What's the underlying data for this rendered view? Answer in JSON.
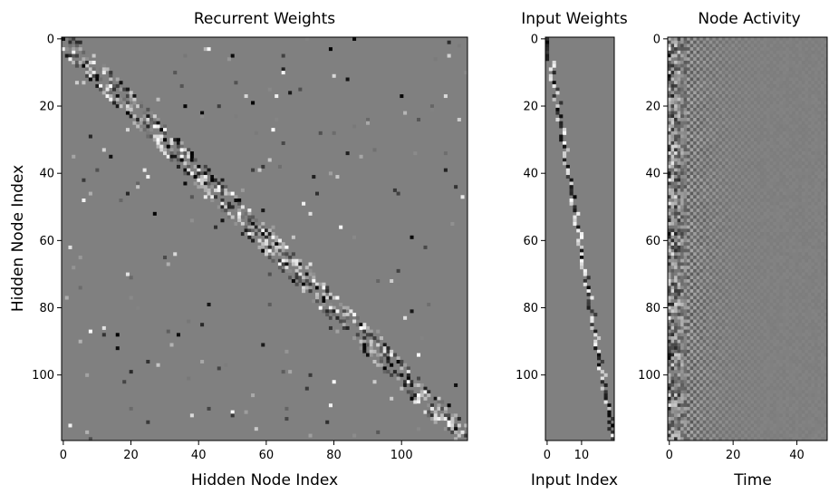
{
  "chart_data": [
    {
      "type": "heatmap",
      "title": "Recurrent Weights",
      "xlabel": "Hidden Node Index",
      "ylabel": "Hidden Node Index",
      "rows": 120,
      "cols": 120,
      "xticks": [
        0,
        20,
        40,
        60,
        80,
        100
      ],
      "yticks": [
        0,
        20,
        40,
        60,
        80,
        100
      ],
      "colormap": "gray",
      "background_value": 0,
      "pattern": "sparse random weights concentrated in a noisy diagonal band from (0,0) to (119,119), plus scattered off-diagonal entries"
    },
    {
      "type": "heatmap",
      "title": "Input Weights",
      "xlabel": "Input Index",
      "ylabel": "",
      "rows": 120,
      "cols": 20,
      "xticks": [
        0,
        10
      ],
      "yticks": [
        0,
        20,
        40,
        60,
        80,
        100
      ],
      "colormap": "gray",
      "background_value": 0,
      "pattern": "sparse diagonal: each hidden node connects to input ≈ row/6"
    },
    {
      "type": "heatmap",
      "title": "Node Activity",
      "xlabel": "Time",
      "ylabel": "",
      "rows": 120,
      "cols": 50,
      "xticks": [
        0,
        20,
        40
      ],
      "yticks": [
        0,
        20,
        40,
        60,
        80,
        100
      ],
      "colormap": "gray",
      "background_value": 0,
      "pattern": "strong activity at early time steps decaying into a fine oscillating checkerboard"
    }
  ]
}
